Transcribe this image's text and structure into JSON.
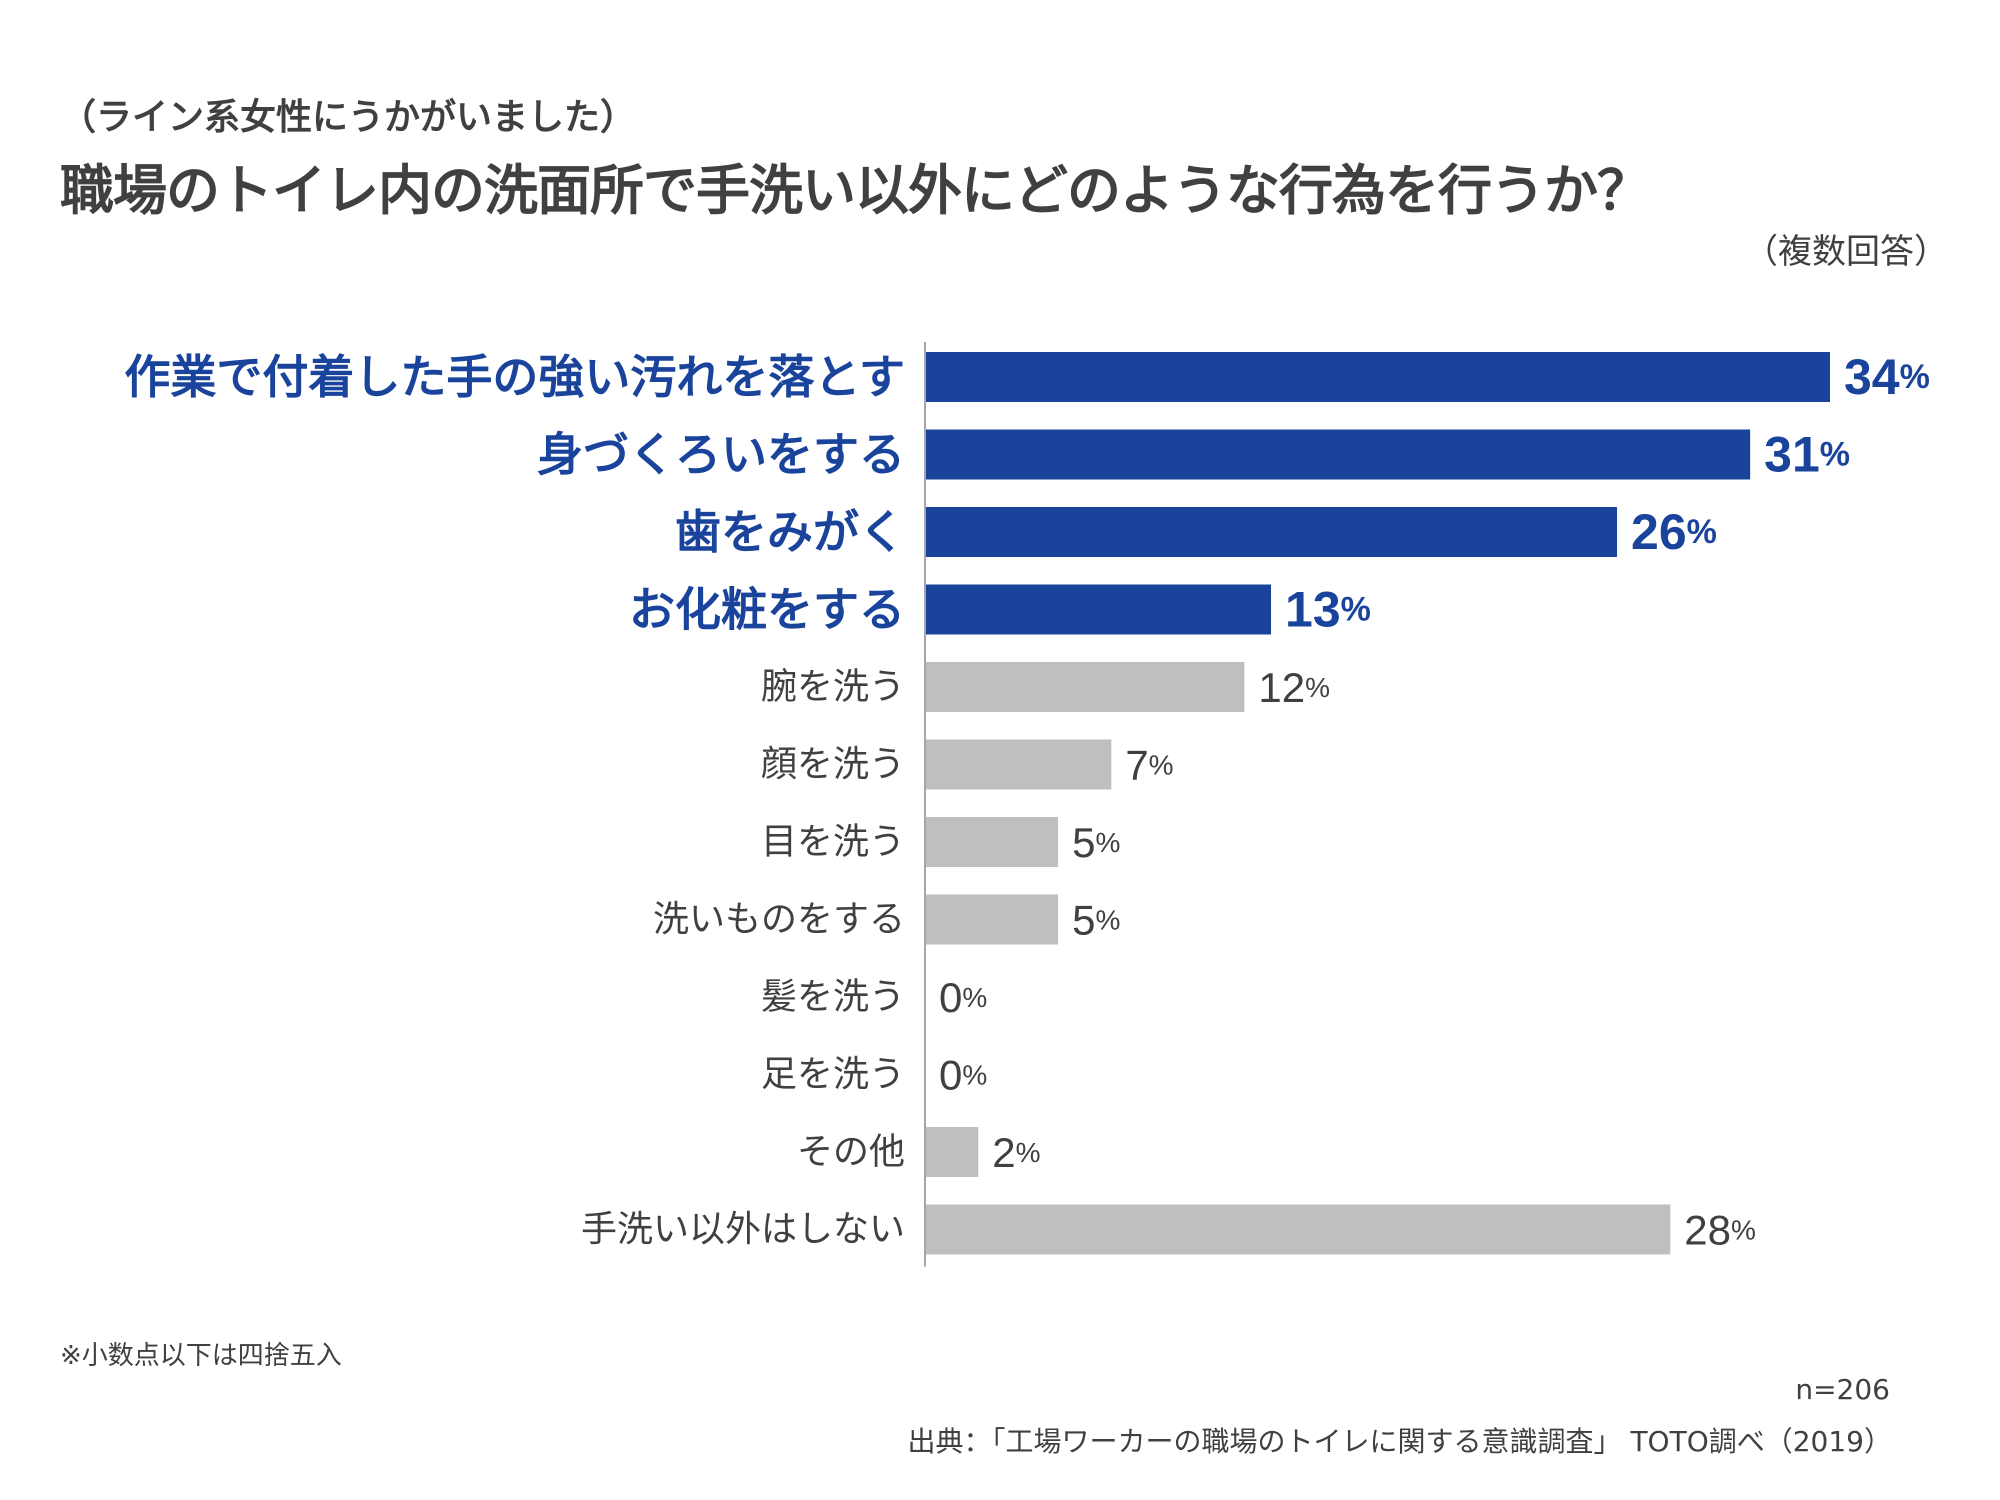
{
  "header": {
    "subtitle": "（ライン系女性にうかがいました）",
    "title": "職場のトイレ内の洗面所で手洗い以外にどのような行為を行うか？",
    "note_multi": "（複数回答）"
  },
  "footer": {
    "rounding_note": "※小数点以下は四捨五入",
    "n": "n=206",
    "source": "出典：「工場ワーカーの職場のトイレに関する意識調査」 TOTO調べ（2019）"
  },
  "colors": {
    "highlight": "#1a449c",
    "default_bar": "#bfbfbf",
    "default_text": "#404040",
    "axis": "#a6a6a6"
  },
  "chart_data": {
    "type": "bar",
    "orientation": "horizontal",
    "unit": "%",
    "xlim": [
      0,
      34
    ],
    "categories": [
      "作業で付着した手の強い汚れを落とす",
      "身づくろいをする",
      "歯をみがく",
      "お化粧をする",
      "腕を洗う",
      "顔を洗う",
      "目を洗う",
      "洗いものをする",
      "髪を洗う",
      "足を洗う",
      "その他",
      "手洗い以外はしない"
    ],
    "values": [
      34,
      31,
      26,
      13,
      12,
      7,
      5,
      5,
      0,
      0,
      2,
      28
    ],
    "highlighted": [
      true,
      true,
      true,
      true,
      false,
      false,
      false,
      false,
      false,
      false,
      false,
      false
    ]
  }
}
